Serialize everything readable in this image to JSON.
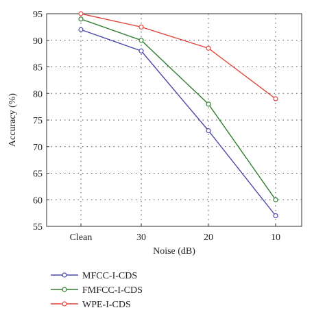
{
  "chart_data": {
    "type": "line",
    "categories": [
      "Clean",
      "30",
      "20",
      "10"
    ],
    "xlabel": "Noise (dB)",
    "ylabel": "Accuracy (%)",
    "ylim": [
      55,
      95
    ],
    "yticks": [
      55,
      60,
      65,
      70,
      75,
      80,
      85,
      90,
      95
    ],
    "grid": true,
    "legend_position": "bottom-left",
    "series": [
      {
        "name": "MFCC-I-CDS",
        "color": "#4a4aa8",
        "values": [
          92,
          88,
          73,
          57
        ]
      },
      {
        "name": "FMFCC-I-CDS",
        "color": "#2e7d2e",
        "values": [
          94,
          90,
          78,
          60
        ]
      },
      {
        "name": "WPE-I-CDS",
        "color": "#e0443a",
        "values": [
          95,
          92.5,
          88.5,
          79
        ]
      }
    ]
  }
}
